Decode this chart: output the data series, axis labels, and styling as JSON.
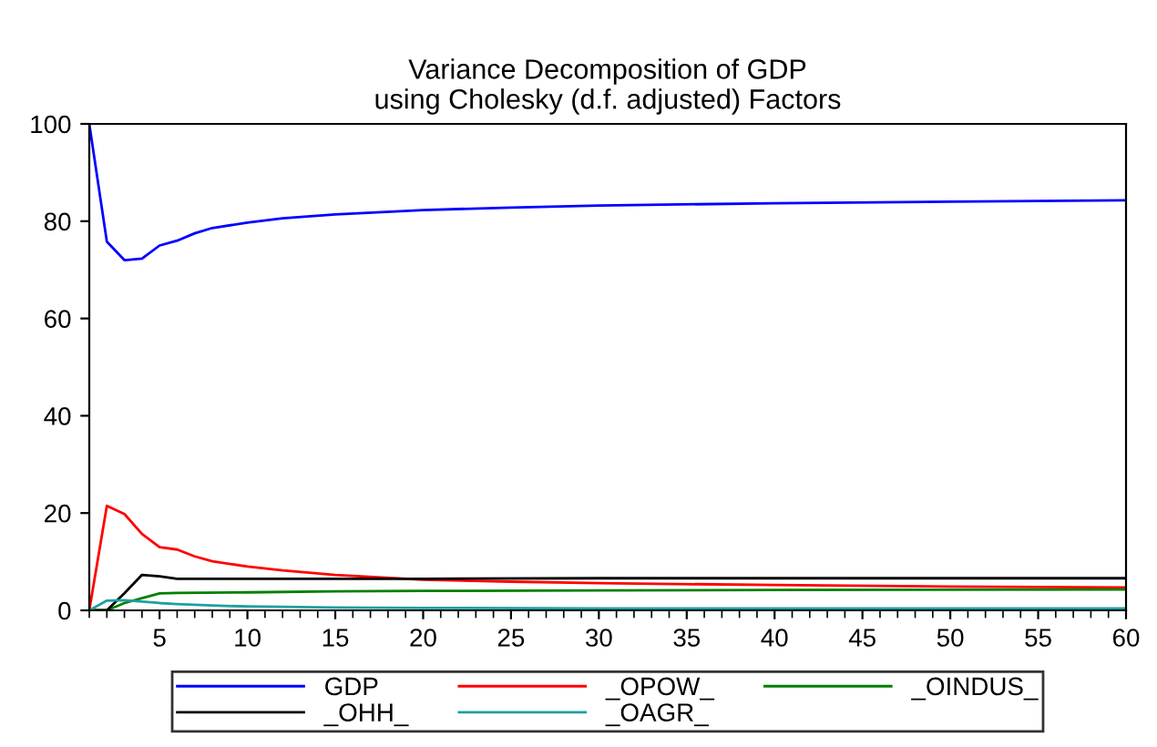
{
  "chart_data": {
    "type": "line",
    "title": "Variance Decomposition of GDP\nusing Cholesky (d.f. adjusted) Factors",
    "xlim": [
      1,
      60
    ],
    "xticks": [
      5,
      10,
      15,
      20,
      25,
      30,
      35,
      40,
      45,
      50,
      55,
      60
    ],
    "ylim": [
      0,
      100
    ],
    "yticks": [
      0,
      20,
      40,
      60,
      80,
      100
    ],
    "grid": false,
    "legend": "bottom",
    "series": [
      {
        "name": "GDP",
        "color": "#0000ff",
        "x": [
          1,
          2,
          3,
          4,
          5,
          6,
          7,
          8,
          10,
          12,
          15,
          20,
          25,
          30,
          40,
          50,
          60
        ],
        "values": [
          100,
          75.8,
          72,
          72.3,
          75,
          76,
          77.5,
          78.6,
          79.7,
          80.6,
          81.4,
          82.3,
          82.8,
          83.2,
          83.7,
          84.0,
          84.3
        ]
      },
      {
        "name": "_OPOW_",
        "color": "#ff0000",
        "x": [
          1,
          2,
          3,
          4,
          5,
          6,
          7,
          8,
          10,
          12,
          15,
          20,
          25,
          30,
          40,
          50,
          60
        ],
        "values": [
          0,
          21.5,
          19.8,
          15.7,
          13,
          12.5,
          11.1,
          10.1,
          9,
          8.2,
          7.3,
          6.3,
          5.9,
          5.6,
          5.2,
          4.9,
          4.7
        ]
      },
      {
        "name": "_OINDUS_",
        "color": "#008000",
        "x": [
          1,
          2,
          3,
          4,
          5,
          6,
          10,
          15,
          20,
          30,
          40,
          60
        ],
        "values": [
          0,
          0,
          1.5,
          2.5,
          3.5,
          3.6,
          3.7,
          3.9,
          4.0,
          4.1,
          4.2,
          4.3
        ]
      },
      {
        "name": "_OHH_",
        "color": "#000000",
        "x": [
          1,
          2,
          3,
          4,
          5,
          6,
          10,
          20,
          30,
          60
        ],
        "values": [
          0,
          0,
          3.5,
          7.3,
          7,
          6.5,
          6.5,
          6.5,
          6.6,
          6.6
        ]
      },
      {
        "name": "_OAGR_",
        "color": "#20a0a0",
        "x": [
          1,
          2,
          3,
          4,
          5,
          6,
          8,
          10,
          15,
          20,
          30,
          60
        ],
        "values": [
          0,
          2,
          2.1,
          1.8,
          1.5,
          1.3,
          1.0,
          0.8,
          0.6,
          0.5,
          0.4,
          0.4
        ]
      }
    ]
  }
}
